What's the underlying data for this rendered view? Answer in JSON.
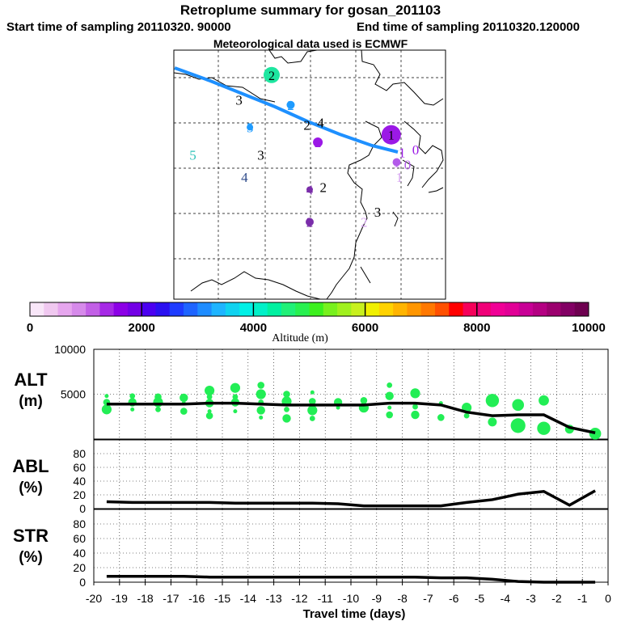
{
  "header": {
    "title": "Retroplume summary for gosan_201103",
    "start_label": "Start time of sampling 20110320. 90000",
    "end_label": "End time of sampling 20110320.120000",
    "met_label": "Meteorological data used is ECMWF"
  },
  "map": {
    "markers": [
      {
        "label": "2",
        "lon": 0.36,
        "lat": 0.1,
        "color": "#1EE6A0",
        "size": 10
      },
      {
        "label": "3",
        "lon": 0.24,
        "lat": 0.2,
        "color": "#000000",
        "size": 0
      },
      {
        "label": "2",
        "lon": 0.43,
        "lat": 0.22,
        "color": "#1E9BFF",
        "size": 5
      },
      {
        "label": "5",
        "lon": 0.28,
        "lat": 0.31,
        "color": "#1E9BFF",
        "size": 4
      },
      {
        "label": "2",
        "lon": 0.49,
        "lat": 0.3,
        "color": "#000000",
        "size": 0
      },
      {
        "label": "4",
        "lon": 0.54,
        "lat": 0.29,
        "color": "#000000",
        "size": 0
      },
      {
        "label": "2",
        "lon": 0.53,
        "lat": 0.37,
        "color": "#9B19E6",
        "size": 6
      },
      {
        "label": "5",
        "lon": 0.07,
        "lat": 0.42,
        "color": "#2EC2B8",
        "size": 0
      },
      {
        "label": "3",
        "lon": 0.32,
        "lat": 0.42,
        "color": "#000000",
        "size": 0
      },
      {
        "label": "4",
        "lon": 0.26,
        "lat": 0.51,
        "color": "#2E4A8A",
        "size": 0
      },
      {
        "label": "1",
        "lon": 0.8,
        "lat": 0.34,
        "color": "#9B19E6",
        "size": 12
      },
      {
        "label": "1",
        "lon": 0.84,
        "lat": 0.41,
        "color": "#9B19E6",
        "size": 0
      },
      {
        "label": "0",
        "lon": 0.89,
        "lat": 0.4,
        "color": "#9B19E6",
        "size": 0
      },
      {
        "label": "1",
        "lon": 0.82,
        "lat": 0.45,
        "color": "#B35BEA",
        "size": 5
      },
      {
        "label": "0",
        "lon": 0.86,
        "lat": 0.46,
        "color": "#B35BEA",
        "size": 0
      },
      {
        "label": "1",
        "lon": 0.83,
        "lat": 0.51,
        "color": "#D7A6F0",
        "size": 0
      },
      {
        "label": "4",
        "lon": 0.5,
        "lat": 0.56,
        "color": "#7A2DAA",
        "size": 4
      },
      {
        "label": "2",
        "lon": 0.55,
        "lat": 0.55,
        "color": "#000000",
        "size": 0
      },
      {
        "label": "2",
        "lon": 0.5,
        "lat": 0.69,
        "color": "#7A2DAA",
        "size": 5
      },
      {
        "label": "2",
        "lon": 0.7,
        "lat": 0.69,
        "color": "#D7A6F0",
        "size": 0
      },
      {
        "label": "3",
        "lon": 0.75,
        "lat": 0.65,
        "color": "#000000",
        "size": 0
      }
    ]
  },
  "colorbar": {
    "tick_labels": [
      "0",
      "2000",
      "4000",
      "6000",
      "8000",
      "10000"
    ],
    "axis_label": "Altitude (m)",
    "colors": [
      "#F8E6F8",
      "#F0C8F0",
      "#E6A6EE",
      "#D68AEA",
      "#C260E6",
      "#A629E6",
      "#8C00E6",
      "#7300E6",
      "#4B00F0",
      "#2A10F0",
      "#1E3CFF",
      "#1E64FF",
      "#1E8CFF",
      "#1EB4FF",
      "#10D2F0",
      "#00F0E6",
      "#00F0C8",
      "#00F0A0",
      "#20F078",
      "#28F050",
      "#3CF01E",
      "#78F01E",
      "#A0F01E",
      "#C8F01E",
      "#F0F000",
      "#FFD200",
      "#FFB400",
      "#FF9600",
      "#FF7800",
      "#FF5000",
      "#FF0000",
      "#F5005A",
      "#F00078",
      "#F00096",
      "#E10096",
      "#C80096",
      "#B40082",
      "#9B006E",
      "#820064",
      "#6E0050"
    ]
  },
  "chart_data": {
    "type": "line",
    "x": [
      -20,
      -19,
      -18,
      -17,
      -16,
      -15,
      -14,
      -13,
      -12,
      -11,
      -10,
      -9,
      -8,
      -7,
      -6,
      -5,
      -4,
      -3,
      -2,
      -1,
      0
    ],
    "xlabel": "Travel time (days)",
    "xlim": [
      -20,
      0
    ],
    "tick_labels": [
      "-20",
      "-19",
      "-18",
      "-17",
      "-16",
      "-15",
      "-14",
      "-13",
      "-12",
      "-11",
      "-10",
      "-9",
      "-8",
      "-7",
      "-6",
      "-5",
      "-4",
      "-3",
      "-2",
      "-1",
      "0"
    ],
    "panels": [
      {
        "label_line1": "ALT",
        "label_line2": "(m)",
        "ylim": [
          0,
          10000
        ],
        "yticks": [
          5000,
          10000
        ],
        "ytick_labels": [
          "5000",
          "10000"
        ],
        "x": [
          -19.5,
          -18.5,
          -17.5,
          -16.5,
          -15.5,
          -14.5,
          -13.5,
          -12.5,
          -11.5,
          -10.5,
          -9.5,
          -8.5,
          -7.5,
          -6.5,
          -5.5,
          -4.5,
          -3.5,
          -2.5,
          -1.5,
          -0.5
        ],
        "values": [
          3900,
          3900,
          3900,
          3900,
          4000,
          4000,
          3900,
          3800,
          3800,
          3800,
          3800,
          4000,
          4000,
          3800,
          3000,
          2600,
          2700,
          2700,
          1300,
          700
        ],
        "cluster_points": [
          [
            -19.5,
            4800
          ],
          [
            -19.5,
            4100
          ],
          [
            -19.5,
            3300
          ],
          [
            -18.5,
            4800
          ],
          [
            -18.5,
            4100
          ],
          [
            -18.5,
            3300
          ],
          [
            -17.5,
            4700
          ],
          [
            -17.5,
            4100
          ],
          [
            -17.5,
            3300
          ],
          [
            -16.5,
            4600
          ],
          [
            -16.5,
            4000
          ],
          [
            -16.5,
            3100
          ],
          [
            -15.5,
            5400
          ],
          [
            -15.5,
            4700
          ],
          [
            -15.5,
            4000
          ],
          [
            -15.5,
            3100
          ],
          [
            -15.5,
            2600
          ],
          [
            -14.5,
            5700
          ],
          [
            -14.5,
            4700
          ],
          [
            -14.5,
            4100
          ],
          [
            -14.5,
            3100
          ],
          [
            -13.5,
            6000
          ],
          [
            -13.5,
            5000
          ],
          [
            -13.5,
            4100
          ],
          [
            -13.5,
            3200
          ],
          [
            -13.5,
            2400
          ],
          [
            -12.5,
            5000
          ],
          [
            -12.5,
            4200
          ],
          [
            -12.5,
            3300
          ],
          [
            -12.5,
            2300
          ],
          [
            -11.5,
            5200
          ],
          [
            -11.5,
            4200
          ],
          [
            -11.5,
            3200
          ],
          [
            -11.5,
            2300
          ],
          [
            -10.5,
            4100
          ],
          [
            -10.5,
            3500
          ],
          [
            -9.5,
            4300
          ],
          [
            -9.5,
            3500
          ],
          [
            -8.5,
            6000
          ],
          [
            -8.5,
            4800
          ],
          [
            -8.5,
            3500
          ],
          [
            -8.5,
            2700
          ],
          [
            -7.5,
            5100
          ],
          [
            -7.5,
            3600
          ],
          [
            -7.5,
            2700
          ],
          [
            -6.5,
            4000
          ],
          [
            -6.5,
            2400
          ],
          [
            -5.5,
            3500
          ],
          [
            -5.5,
            2600
          ],
          [
            -4.5,
            4300
          ],
          [
            -4.5,
            1900
          ],
          [
            -3.5,
            3800
          ],
          [
            -3.5,
            1500
          ],
          [
            -2.5,
            4300
          ],
          [
            -2.5,
            1200
          ],
          [
            -1.5,
            1100
          ],
          [
            -0.5,
            600
          ]
        ]
      },
      {
        "label_line1": "ABL",
        "label_line2": "(%)",
        "ylim": [
          0,
          100
        ],
        "yticks": [
          0,
          20,
          40,
          60,
          80
        ],
        "ytick_labels": [
          "0",
          "20",
          "40",
          "60",
          "80"
        ],
        "x": [
          -19.5,
          -18.5,
          -17.5,
          -16.5,
          -15.5,
          -14.5,
          -13.5,
          -12.5,
          -11.5,
          -10.5,
          -9.5,
          -8.5,
          -7.5,
          -6.5,
          -5.5,
          -4.5,
          -3.5,
          -2.5,
          -1.5,
          -0.5
        ],
        "values": [
          10,
          9,
          9,
          9,
          9,
          8,
          8,
          8,
          8,
          7,
          4,
          4,
          4,
          4,
          9,
          13,
          21,
          25,
          5,
          26
        ]
      },
      {
        "label_line1": "STR",
        "label_line2": "(%)",
        "ylim": [
          0,
          100
        ],
        "yticks": [
          0,
          20,
          40,
          60,
          80
        ],
        "ytick_labels": [
          "0",
          "20",
          "40",
          "60",
          "80"
        ],
        "x": [
          -19.5,
          -18.5,
          -17.5,
          -16.5,
          -15.5,
          -14.5,
          -13.5,
          -12.5,
          -11.5,
          -10.5,
          -9.5,
          -8.5,
          -7.5,
          -6.5,
          -5.5,
          -4.5,
          -3.5,
          -2.5,
          -1.5,
          -0.5
        ],
        "values": [
          8,
          8,
          8,
          8,
          7,
          7,
          7,
          7,
          7,
          7,
          7,
          7,
          7,
          6,
          6,
          4,
          1,
          0,
          0,
          0
        ]
      }
    ]
  }
}
